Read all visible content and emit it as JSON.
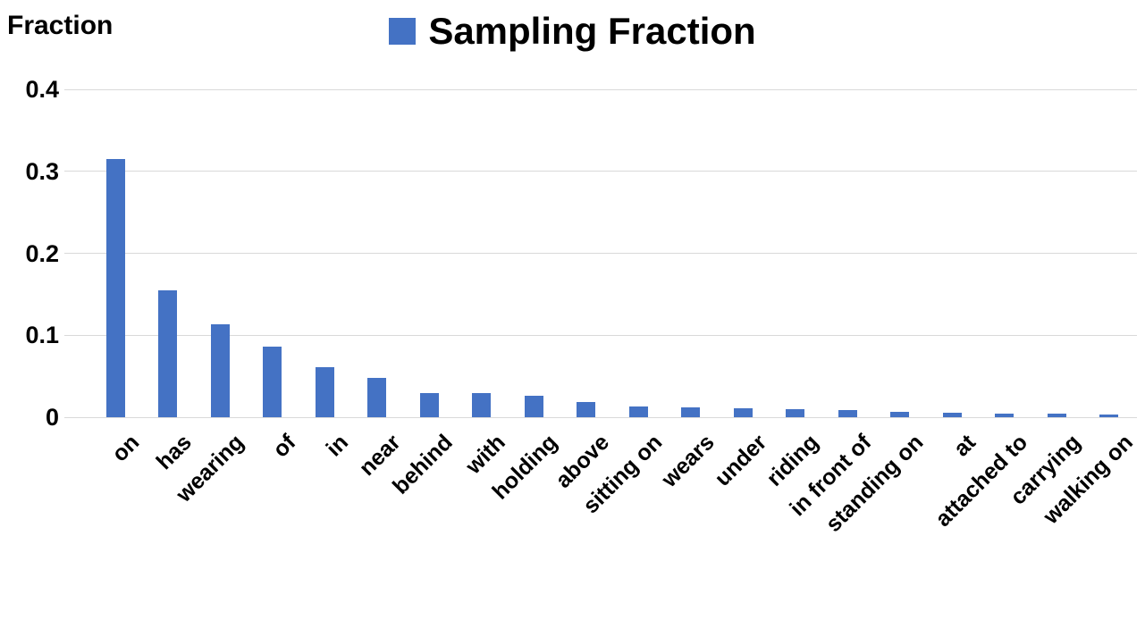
{
  "header": {
    "y_axis_title": "Fraction"
  },
  "legend": {
    "label": "Sampling Fraction",
    "swatch_color": "#4472C4"
  },
  "chart_data": {
    "type": "bar",
    "title": "Sampling Fraction",
    "categories": [
      "on",
      "has",
      "wearing",
      "of",
      "in",
      "near",
      "behind",
      "with",
      "holding",
      "above",
      "sitting on",
      "wears",
      "under",
      "riding",
      "in front of",
      "standing on",
      "at",
      "attached to",
      "carrying",
      "walking on"
    ],
    "values": [
      0.315,
      0.155,
      0.113,
      0.086,
      0.061,
      0.048,
      0.029,
      0.029,
      0.026,
      0.019,
      0.013,
      0.012,
      0.011,
      0.01,
      0.009,
      0.006,
      0.005,
      0.004,
      0.004,
      0.003
    ],
    "xlabel": "",
    "ylabel": "Fraction",
    "ylim": [
      0,
      0.4
    ],
    "yticks": [
      0,
      0.1,
      0.2,
      0.3,
      0.4
    ],
    "ytick_labels": [
      "0",
      "0.1",
      "0.2",
      "0.3",
      "0.4"
    ],
    "grid": true,
    "bar_color": "#4472C4",
    "legend_position": "top"
  }
}
